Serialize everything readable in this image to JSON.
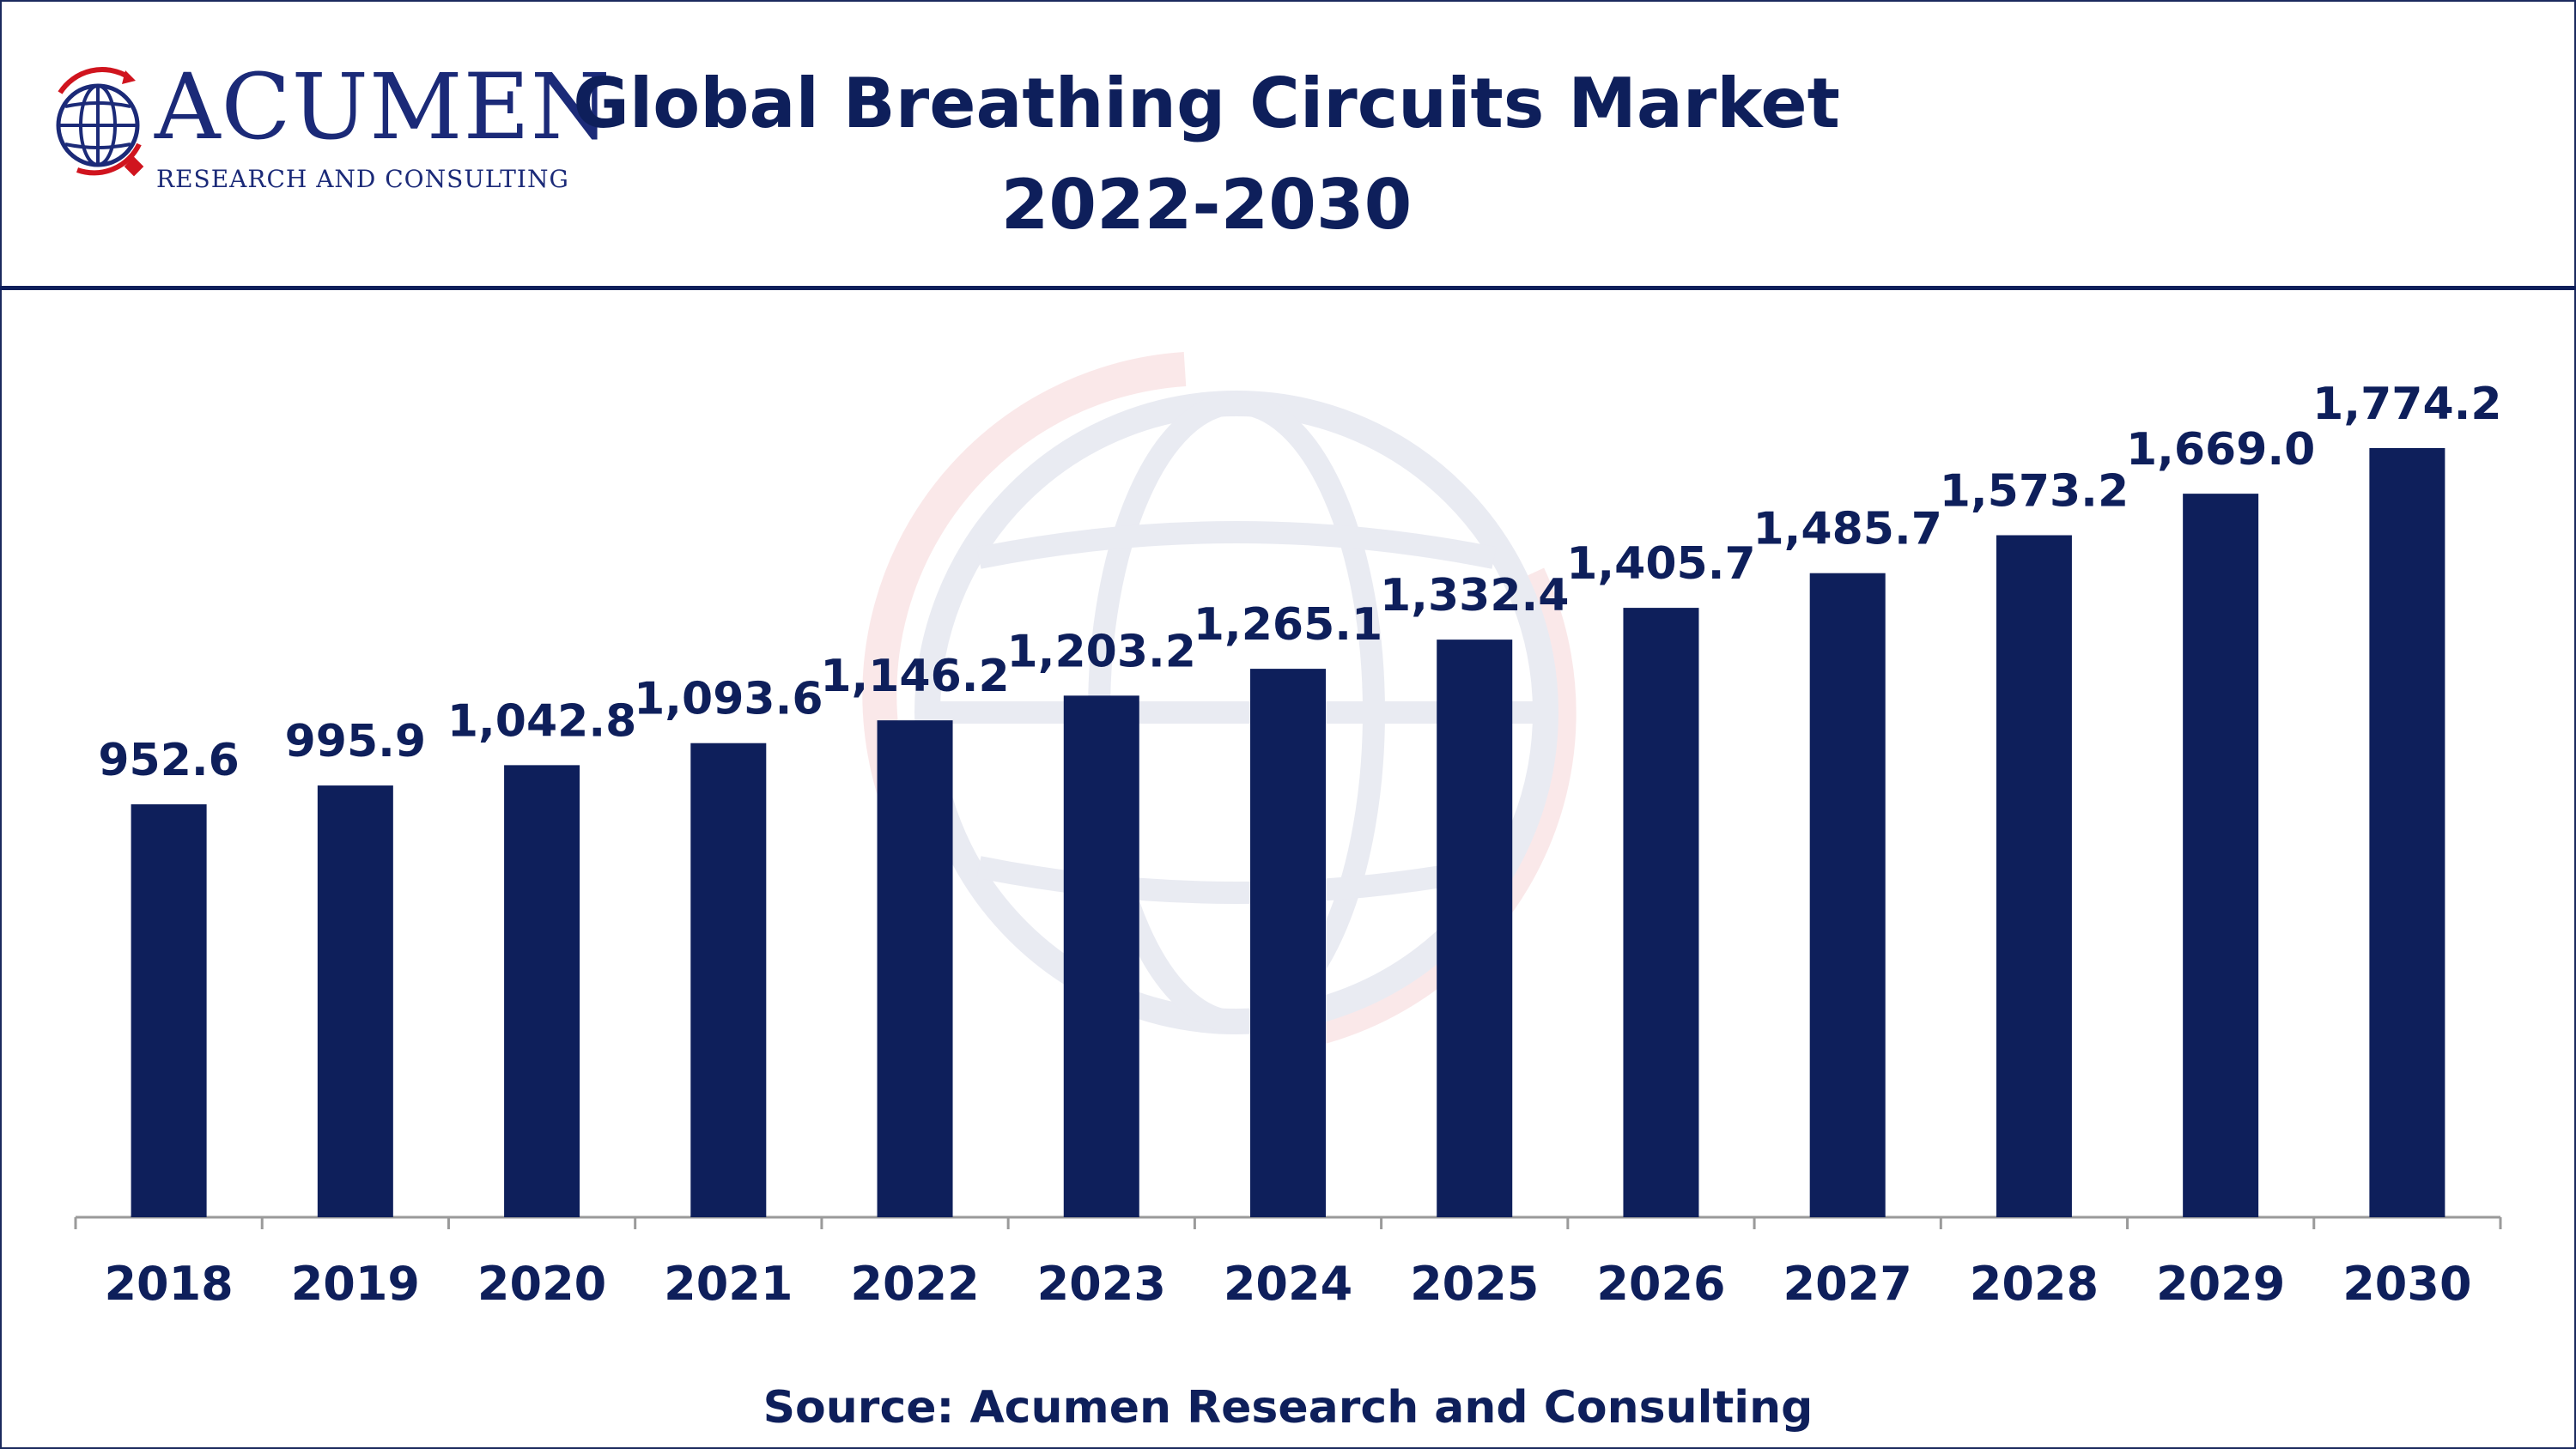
{
  "brand": {
    "name": "ACUMEN",
    "tagline": "RESEARCH AND CONSULTING"
  },
  "header": {
    "title_line1": "Global Breathing Circuits Market",
    "title_line2": "2022-2030"
  },
  "source": "Source: Acumen Research and Consulting",
  "colors": {
    "bar": "#0e1f5b",
    "text": "#0e1f5b",
    "accent_red": "#d0141e",
    "axis": "#9a9a9a"
  },
  "chart_data": {
    "type": "bar",
    "title": "Global Breathing Circuits Market 2022-2030",
    "xlabel": "",
    "ylabel": "",
    "categories": [
      "2018",
      "2019",
      "2020",
      "2021",
      "2022",
      "2023",
      "2024",
      "2025",
      "2026",
      "2027",
      "2028",
      "2029",
      "2030"
    ],
    "values": [
      952.6,
      995.9,
      1042.8,
      1093.6,
      1146.2,
      1203.2,
      1265.1,
      1332.4,
      1405.7,
      1485.7,
      1573.2,
      1669.0,
      1774.2
    ],
    "value_labels": [
      "952.6",
      "995.9",
      "1,042.8",
      "1,093.6",
      "1,146.2",
      "1,203.2",
      "1,265.1",
      "1,332.4",
      "1,405.7",
      "1,485.7",
      "1,573.2",
      "1,669.0",
      "1,774.2"
    ],
    "ylim": [
      0,
      1774.2
    ],
    "grid": false,
    "legend": "none"
  }
}
